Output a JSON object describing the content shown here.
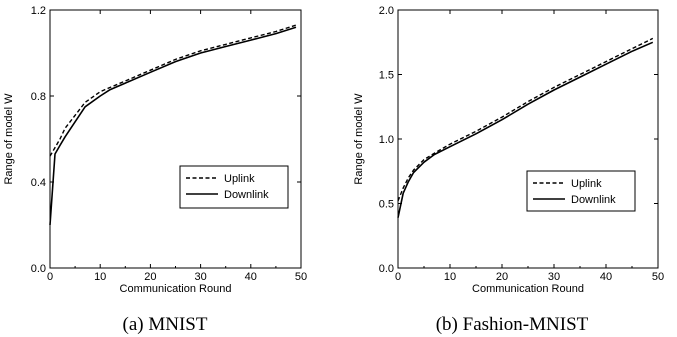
{
  "chart_data": [
    {
      "type": "line",
      "caption": "(a) MNIST",
      "xlabel": "Communication Round",
      "ylabel": "Range of model W",
      "xlim": [
        0,
        50
      ],
      "ylim": [
        0.0,
        1.2
      ],
      "xticks": [
        "0",
        "10",
        "20",
        "30",
        "40",
        "50"
      ],
      "yticks": [
        "0.0",
        "0.4",
        "0.8",
        "1.2"
      ],
      "legend_position": "lower-right",
      "series": [
        {
          "name": "Uplink",
          "style": "dashed",
          "x": [
            0,
            1,
            2,
            3,
            5,
            7,
            10,
            12,
            15,
            20,
            25,
            30,
            35,
            40,
            45,
            49
          ],
          "y": [
            0.52,
            0.56,
            0.6,
            0.65,
            0.71,
            0.77,
            0.82,
            0.84,
            0.87,
            0.92,
            0.97,
            1.01,
            1.04,
            1.07,
            1.1,
            1.13
          ]
        },
        {
          "name": "Downlink",
          "style": "solid",
          "x": [
            0,
            1,
            2,
            3,
            5,
            7,
            10,
            12,
            15,
            20,
            25,
            30,
            35,
            40,
            45,
            49
          ],
          "y": [
            0.2,
            0.53,
            0.57,
            0.61,
            0.68,
            0.75,
            0.8,
            0.83,
            0.86,
            0.91,
            0.96,
            1.0,
            1.03,
            1.06,
            1.09,
            1.12
          ]
        }
      ]
    },
    {
      "type": "line",
      "caption": "(b) Fashion-MNIST",
      "xlabel": "Communication Round",
      "ylabel": "Range of model W",
      "xlim": [
        0,
        50
      ],
      "ylim": [
        0.0,
        2.0
      ],
      "xticks": [
        "0",
        "10",
        "20",
        "30",
        "40",
        "50"
      ],
      "yticks": [
        "0.0",
        "0.5",
        "1.0",
        "1.5",
        "2.0"
      ],
      "legend_position": "lower-right",
      "series": [
        {
          "name": "Uplink",
          "style": "dashed",
          "x": [
            0,
            1,
            2,
            3,
            5,
            7,
            10,
            15,
            20,
            25,
            30,
            35,
            40,
            45,
            49
          ],
          "y": [
            0.52,
            0.62,
            0.7,
            0.76,
            0.84,
            0.89,
            0.96,
            1.06,
            1.17,
            1.29,
            1.4,
            1.5,
            1.6,
            1.7,
            1.78
          ]
        },
        {
          "name": "Downlink",
          "style": "solid",
          "x": [
            0,
            1,
            2,
            3,
            5,
            7,
            10,
            15,
            20,
            25,
            30,
            35,
            40,
            45,
            49
          ],
          "y": [
            0.39,
            0.58,
            0.67,
            0.74,
            0.82,
            0.88,
            0.94,
            1.04,
            1.15,
            1.27,
            1.38,
            1.48,
            1.58,
            1.68,
            1.75
          ]
        }
      ]
    }
  ]
}
